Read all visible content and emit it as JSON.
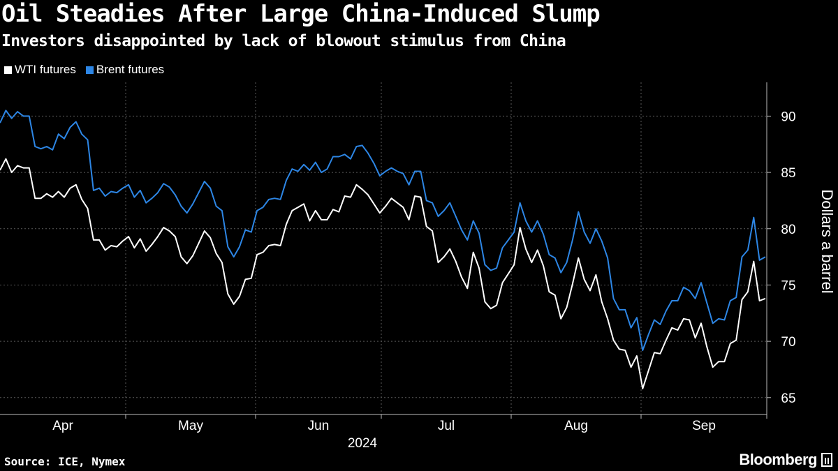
{
  "title": "Oil Steadies After Large China-Induced Slump",
  "subtitle": "Investors disappointed by lack of blowout stimulus from China",
  "source": "Source: ICE, Nymex",
  "brand": "Bloomberg",
  "chart_data": {
    "type": "line",
    "ylabel": "Dollars a barrel",
    "year_label": "2024",
    "ylim": [
      63.5,
      93
    ],
    "yticks": [
      65,
      70,
      75,
      80,
      85,
      90
    ],
    "month_labels": [
      "Apr",
      "May",
      "Jun",
      "Jul",
      "Aug",
      "Sep"
    ],
    "x_range": "2024-04-01 to 2024-10-01",
    "colors": {
      "WTI futures": "#ffffff",
      "Brent futures": "#2d86e5"
    },
    "series": [
      {
        "name": "WTI futures",
        "values": [
          85.2,
          86.2,
          85.0,
          85.6,
          85.4,
          85.4,
          82.7,
          82.7,
          83.1,
          82.8,
          83.3,
          82.8,
          83.6,
          83.9,
          82.6,
          81.8,
          79.0,
          79.0,
          78.1,
          78.5,
          78.4,
          78.9,
          79.3,
          78.3,
          79.1,
          78.0,
          78.6,
          79.3,
          80.1,
          79.8,
          79.3,
          77.5,
          76.9,
          77.6,
          78.7,
          79.8,
          79.2,
          77.8,
          77.0,
          74.2,
          73.3,
          74.0,
          75.5,
          75.6,
          77.7,
          77.9,
          78.5,
          78.6,
          78.5,
          80.4,
          81.6,
          81.9,
          82.2,
          80.7,
          81.6,
          80.8,
          80.8,
          81.7,
          81.5,
          82.9,
          82.8,
          83.9,
          83.5,
          83.0,
          82.2,
          81.4,
          82.0,
          82.7,
          82.3,
          81.9,
          80.8,
          82.9,
          82.8,
          80.2,
          79.8,
          77.0,
          77.5,
          78.2,
          77.1,
          75.7,
          74.7,
          77.9,
          76.5,
          73.5,
          72.9,
          73.2,
          75.2,
          76.0,
          76.8,
          80.1,
          78.2,
          77.0,
          78.1,
          76.7,
          74.4,
          74.1,
          72.0,
          73.0,
          75.1,
          77.4,
          75.5,
          74.5,
          75.9,
          73.5,
          72.0,
          70.1,
          69.3,
          69.2,
          67.7,
          68.7,
          65.8,
          67.4,
          69.0,
          68.9,
          70.1,
          71.2,
          71.0,
          72.0,
          71.9,
          70.3,
          71.6,
          69.5,
          67.7,
          68.2,
          68.2,
          69.8,
          70.1,
          73.7,
          74.4,
          77.1,
          73.6,
          73.8
        ]
      },
      {
        "name": "Brent futures",
        "values": [
          89.4,
          90.5,
          89.8,
          90.4,
          90.0,
          90.0,
          87.3,
          87.1,
          87.3,
          87.0,
          88.4,
          88.0,
          89.0,
          89.5,
          88.4,
          87.9,
          83.4,
          83.6,
          82.9,
          83.3,
          83.2,
          83.6,
          83.9,
          82.8,
          83.4,
          82.3,
          82.7,
          83.2,
          84.0,
          83.7,
          83.0,
          82.0,
          81.4,
          82.2,
          83.2,
          84.2,
          83.6,
          82.0,
          81.6,
          78.4,
          77.5,
          78.4,
          79.9,
          79.7,
          81.6,
          81.9,
          82.6,
          82.7,
          82.6,
          84.3,
          85.3,
          85.1,
          85.7,
          85.2,
          85.9,
          85.0,
          85.3,
          86.4,
          86.4,
          86.6,
          86.2,
          87.3,
          87.4,
          86.7,
          85.8,
          84.7,
          85.1,
          85.4,
          85.1,
          84.9,
          83.9,
          85.1,
          85.1,
          82.5,
          82.3,
          81.1,
          81.6,
          82.3,
          81.1,
          79.9,
          79.0,
          80.7,
          79.6,
          76.8,
          76.3,
          76.5,
          78.3,
          79.0,
          79.7,
          82.3,
          80.7,
          79.7,
          80.7,
          79.5,
          77.7,
          77.4,
          76.1,
          77.0,
          79.0,
          81.5,
          79.7,
          78.7,
          80.0,
          78.9,
          77.4,
          73.8,
          72.8,
          72.8,
          71.2,
          72.1,
          69.2,
          70.6,
          71.9,
          71.5,
          72.7,
          73.6,
          73.6,
          74.8,
          74.5,
          73.8,
          75.2,
          73.4,
          71.6,
          72.0,
          71.9,
          73.6,
          73.9,
          77.5,
          78.1,
          81.0,
          77.2,
          77.5
        ]
      }
    ],
    "legend": [
      "WTI futures",
      "Brent futures"
    ]
  }
}
